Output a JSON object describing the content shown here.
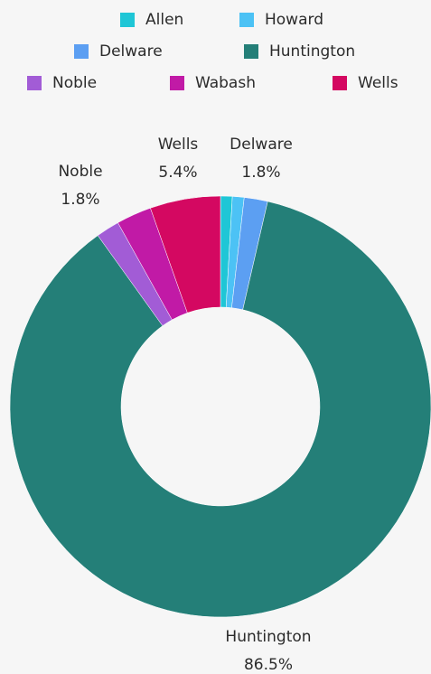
{
  "chart_data": {
    "type": "donut",
    "categories": [
      "Allen",
      "Howard",
      "Delware",
      "Huntington",
      "Noble",
      "Wabash",
      "Wells"
    ],
    "values": [
      0.9,
      0.9,
      1.8,
      86.5,
      1.8,
      2.7,
      5.4
    ],
    "value_labels": [
      null,
      null,
      "1.8%",
      "86.5%",
      "1.8%",
      null,
      "5.4%"
    ],
    "colors": [
      "#1fc6d6",
      "#4cc2f5",
      "#5c9ff2",
      "#247f78",
      "#a25cd6",
      "#c11aa6",
      "#d40861"
    ],
    "legend": "top"
  }
}
